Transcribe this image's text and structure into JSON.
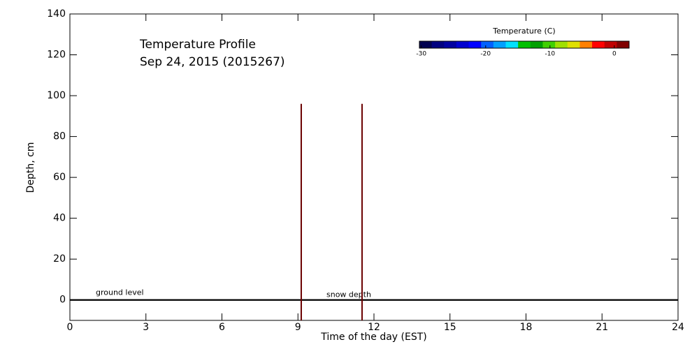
{
  "chart_data": {
    "type": "profile",
    "title": "Temperature Profile",
    "subtitle": "Sep 24, 2015 (2015267)",
    "xlabel": "Time of the day (EST)",
    "ylabel": "Depth, cm",
    "xlim": [
      0,
      24
    ],
    "xticks": [
      0,
      3,
      6,
      9,
      12,
      15,
      18,
      21,
      24
    ],
    "ylim": [
      -10,
      140
    ],
    "yticks": [
      0,
      20,
      40,
      60,
      80,
      100,
      120,
      140
    ],
    "x": [
      9.13,
      11.53
    ],
    "values": [
      96,
      96
    ],
    "color": "#6b0000",
    "reference_lines": [
      {
        "name": "ground level",
        "value": 0
      },
      {
        "name": "snow depth",
        "value": 0
      }
    ],
    "colorbar": {
      "title": "Temperature (C)",
      "lim": [
        -30.3,
        2.3
      ],
      "ticks": [
        -30,
        -20,
        -10,
        0
      ],
      "colors": [
        "#000050",
        "#000080",
        "#0000a0",
        "#0000d0",
        "#0000ff",
        "#0060ff",
        "#00a0ff",
        "#00e0ff",
        "#00c000",
        "#00a000",
        "#40d000",
        "#a0e000",
        "#e0e000",
        "#ff8000",
        "#ff0000",
        "#c00000",
        "#800000"
      ]
    }
  }
}
